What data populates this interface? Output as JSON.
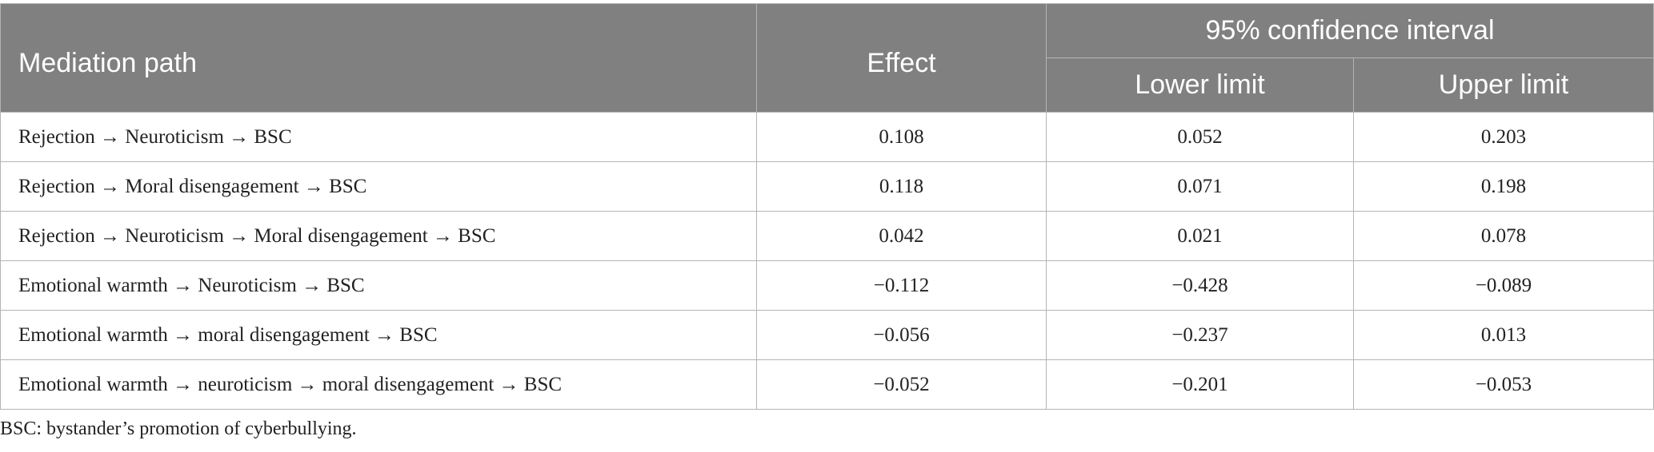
{
  "header": {
    "mediation_path": "Mediation path",
    "effect": "Effect",
    "ci": "95% confidence interval",
    "lower": "Lower limit",
    "upper": "Upper limit"
  },
  "rows": [
    {
      "path": "Rejection → Neuroticism → BSC",
      "effect": "0.108",
      "lower": "0.052",
      "upper": "0.203"
    },
    {
      "path": "Rejection → Moral disengagement → BSC",
      "effect": "0.118",
      "lower": "0.071",
      "upper": "0.198"
    },
    {
      "path": "Rejection → Neuroticism → Moral disengagement → BSC",
      "effect": "0.042",
      "lower": "0.021",
      "upper": "0.078"
    },
    {
      "path": "Emotional warmth → Neuroticism → BSC",
      "effect": "−0.112",
      "lower": "−0.428",
      "upper": "−0.089"
    },
    {
      "path": "Emotional warmth → moral disengagement → BSC",
      "effect": "−0.056",
      "lower": "−0.237",
      "upper": "0.013"
    },
    {
      "path": "Emotional warmth → neuroticism → moral disengagement → BSC",
      "effect": "−0.052",
      "lower": "−0.201",
      "upper": "−0.053"
    }
  ],
  "footnote": "BSC: bystander’s promotion of cyberbullying."
}
